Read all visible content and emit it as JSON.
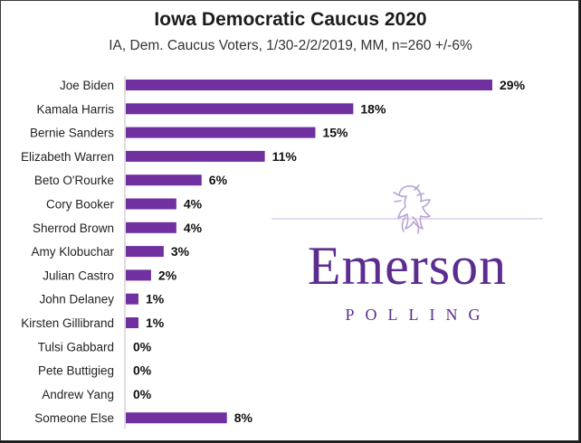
{
  "chart_data": {
    "type": "bar",
    "orientation": "horizontal",
    "title": "Iowa Democratic Caucus 2020",
    "subtitle": "IA, Dem. Caucus Voters, 1/30-2/2/2019, MM, n=260 +/-6%",
    "categories": [
      "Joe Biden",
      "Kamala Harris",
      "Bernie Sanders",
      "Elizabeth Warren",
      "Beto O'Rourke",
      "Cory Booker",
      "Sherrod Brown",
      "Amy Klobuchar",
      "Julian Castro",
      "John Delaney",
      "Kirsten Gillibrand",
      "Tulsi Gabbard",
      "Pete Buttigieg",
      "Andrew Yang",
      "Someone Else"
    ],
    "values": [
      29,
      18,
      15,
      11,
      6,
      4,
      4,
      3,
      2,
      1,
      1,
      0,
      0,
      0,
      8
    ],
    "value_labels": [
      "29%",
      "18%",
      "15%",
      "11%",
      "6%",
      "4%",
      "4%",
      "3%",
      "2%",
      "1%",
      "1%",
      "0%",
      "0%",
      "0%",
      "8%"
    ],
    "xlim": [
      0,
      29
    ],
    "bar_color": "#7030a0",
    "grid": false,
    "legend": "none"
  },
  "logo": {
    "name": "Emerson",
    "subtitle": "POLLING",
    "color": "#5c2d91",
    "icon": "lion-crest-icon"
  }
}
